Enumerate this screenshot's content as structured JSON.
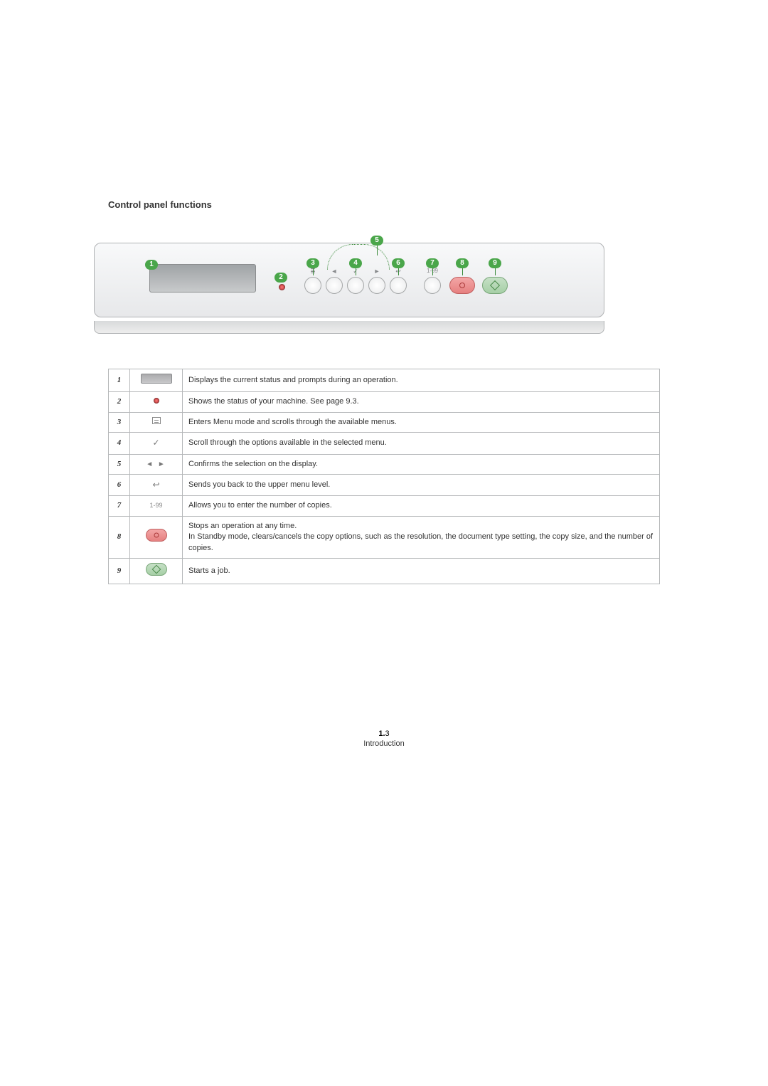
{
  "colors": {
    "callout_bg": "#4aa64a",
    "callout_text": "#ffffff",
    "row_num_color": "#2a8a8a",
    "border_color": "#b6b8ba",
    "text_color": "#333333",
    "panel_border": "#b0b2b4",
    "led_color": "#b03030",
    "stop_bg": "#e68080",
    "start_bg": "#a6cfa6"
  },
  "title": "Control panel functions",
  "callouts": [
    "1",
    "2",
    "3",
    "4",
    "5",
    "6",
    "7",
    "8",
    "9"
  ],
  "panel_button_labels": {
    "menu": "≣",
    "left": "◄",
    "ok": "✓",
    "right": "►",
    "back": "↩",
    "copies": "1-99"
  },
  "functions": [
    {
      "num": "1",
      "icon": "lcd",
      "desc": "Displays the current status and prompts during an operation."
    },
    {
      "num": "2",
      "icon": "led",
      "desc": "Shows the status of your machine. See page 9.3."
    },
    {
      "num": "3",
      "icon": "menu",
      "desc": "Enters Menu mode and scrolls through the available menus."
    },
    {
      "num": "4",
      "icon": "check",
      "desc": "Scroll through the options available in the selected menu."
    },
    {
      "num": "5",
      "icon": "arrows",
      "desc": "Confirms the selection on the display."
    },
    {
      "num": "6",
      "icon": "back",
      "desc": "Sends you back to the upper menu level."
    },
    {
      "num": "7",
      "icon": "copies",
      "desc": "Allows you to enter the number of copies."
    },
    {
      "num": "8",
      "icon": "stop",
      "desc": "Stops an operation at any time.\nIn Standby mode, clears/cancels the copy options, such as the resolution, the document type setting, the copy size, and the number of copies."
    },
    {
      "num": "9",
      "icon": "start",
      "desc": "Starts a job."
    }
  ],
  "icon_text": {
    "check": "✓",
    "arrows": "◄ ►",
    "back": "↩",
    "copies": "1-99"
  },
  "footer": {
    "page_chapter": "1.",
    "page_number": "3",
    "section": "Introduction"
  }
}
